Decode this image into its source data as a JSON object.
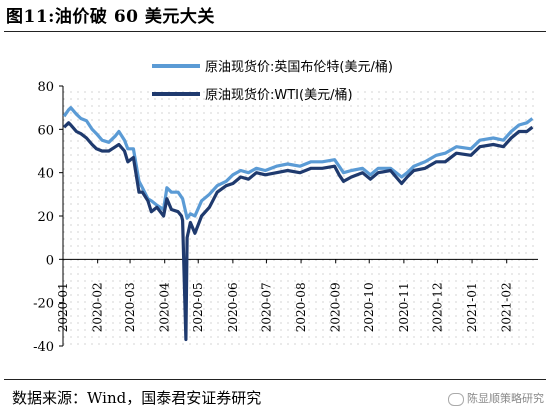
{
  "title": "图11:油价破 60 美元大关",
  "source": "数据来源：Wind，国泰君安证券研究",
  "watermark": "陈显顺策略研究",
  "chart_data": {
    "type": "line",
    "yticks": [
      "80",
      "60",
      "40",
      "20",
      "0",
      "-20",
      "-40"
    ],
    "ylim": [
      -40,
      80
    ],
    "grid": "dotted",
    "legend_position": "top-center",
    "x_categories": [
      "2020-01",
      "2020-02",
      "2020-03",
      "2020-04",
      "2020-05",
      "2020-06",
      "2020-07",
      "2020-08",
      "2020-09",
      "2020-10",
      "2020-11",
      "2020-12",
      "2021-01",
      "2021-02"
    ],
    "series": [
      {
        "name": "原油现货价:英国布伦特(美元/桶)",
        "color": "#5b9bd5",
        "points": [
          [
            "2020-01-02",
            66
          ],
          [
            "2020-01-06",
            69
          ],
          [
            "2020-01-08",
            70
          ],
          [
            "2020-01-13",
            67
          ],
          [
            "2020-01-17",
            65
          ],
          [
            "2020-01-22",
            64
          ],
          [
            "2020-01-27",
            60
          ],
          [
            "2020-01-31",
            58
          ],
          [
            "2020-02-05",
            55
          ],
          [
            "2020-02-11",
            54
          ],
          [
            "2020-02-17",
            57
          ],
          [
            "2020-02-20",
            59
          ],
          [
            "2020-02-25",
            55
          ],
          [
            "2020-02-28",
            51
          ],
          [
            "2020-03-04",
            51
          ],
          [
            "2020-03-09",
            36
          ],
          [
            "2020-03-12",
            33
          ],
          [
            "2020-03-17",
            28
          ],
          [
            "2020-03-20",
            27
          ],
          [
            "2020-03-25",
            25
          ],
          [
            "2020-03-31",
            23
          ],
          [
            "2020-04-03",
            33
          ],
          [
            "2020-04-07",
            31
          ],
          [
            "2020-04-13",
            31
          ],
          [
            "2020-04-17",
            28
          ],
          [
            "2020-04-21",
            19
          ],
          [
            "2020-04-24",
            21
          ],
          [
            "2020-04-28",
            20
          ],
          [
            "2020-05-04",
            27
          ],
          [
            "2020-05-11",
            30
          ],
          [
            "2020-05-18",
            34
          ],
          [
            "2020-05-26",
            36
          ],
          [
            "2020-06-01",
            39
          ],
          [
            "2020-06-08",
            41
          ],
          [
            "2020-06-15",
            40
          ],
          [
            "2020-06-22",
            42
          ],
          [
            "2020-06-30",
            41
          ],
          [
            "2020-07-10",
            43
          ],
          [
            "2020-07-20",
            44
          ],
          [
            "2020-07-31",
            43
          ],
          [
            "2020-08-10",
            45
          ],
          [
            "2020-08-20",
            45
          ],
          [
            "2020-08-31",
            46
          ],
          [
            "2020-09-04",
            43
          ],
          [
            "2020-09-08",
            40
          ],
          [
            "2020-09-15",
            41
          ],
          [
            "2020-09-25",
            42
          ],
          [
            "2020-10-02",
            39
          ],
          [
            "2020-10-09",
            42
          ],
          [
            "2020-10-20",
            42
          ],
          [
            "2020-10-30",
            38
          ],
          [
            "2020-11-04",
            40
          ],
          [
            "2020-11-10",
            43
          ],
          [
            "2020-11-20",
            45
          ],
          [
            "2020-11-30",
            48
          ],
          [
            "2020-12-08",
            49
          ],
          [
            "2020-12-18",
            52
          ],
          [
            "2020-12-31",
            51
          ],
          [
            "2021-01-08",
            55
          ],
          [
            "2021-01-20",
            56
          ],
          [
            "2021-01-29",
            55
          ],
          [
            "2021-02-05",
            59
          ],
          [
            "2021-02-12",
            62
          ],
          [
            "2021-02-19",
            63
          ],
          [
            "2021-02-24",
            65
          ]
        ]
      },
      {
        "name": "原油现货价:WTI(美元/桶)",
        "color": "#1f3a6e",
        "points": [
          [
            "2020-01-02",
            61
          ],
          [
            "2020-01-06",
            63
          ],
          [
            "2020-01-08",
            62
          ],
          [
            "2020-01-13",
            59
          ],
          [
            "2020-01-17",
            58
          ],
          [
            "2020-01-22",
            56
          ],
          [
            "2020-01-27",
            53
          ],
          [
            "2020-01-31",
            51
          ],
          [
            "2020-02-05",
            50
          ],
          [
            "2020-02-11",
            50
          ],
          [
            "2020-02-17",
            52
          ],
          [
            "2020-02-20",
            53
          ],
          [
            "2020-02-25",
            50
          ],
          [
            "2020-02-28",
            45
          ],
          [
            "2020-03-04",
            47
          ],
          [
            "2020-03-09",
            31
          ],
          [
            "2020-03-12",
            31
          ],
          [
            "2020-03-17",
            27
          ],
          [
            "2020-03-20",
            22
          ],
          [
            "2020-03-25",
            24
          ],
          [
            "2020-03-31",
            20
          ],
          [
            "2020-04-03",
            28
          ],
          [
            "2020-04-07",
            23
          ],
          [
            "2020-04-13",
            22
          ],
          [
            "2020-04-16",
            20
          ],
          [
            "2020-04-17",
            18
          ],
          [
            "2020-04-20",
            -37
          ],
          [
            "2020-04-21",
            10
          ],
          [
            "2020-04-24",
            17
          ],
          [
            "2020-04-28",
            12
          ],
          [
            "2020-05-04",
            20
          ],
          [
            "2020-05-11",
            24
          ],
          [
            "2020-05-18",
            31
          ],
          [
            "2020-05-26",
            34
          ],
          [
            "2020-06-01",
            35
          ],
          [
            "2020-06-08",
            38
          ],
          [
            "2020-06-15",
            37
          ],
          [
            "2020-06-22",
            40
          ],
          [
            "2020-06-30",
            39
          ],
          [
            "2020-07-10",
            40
          ],
          [
            "2020-07-20",
            41
          ],
          [
            "2020-07-31",
            40
          ],
          [
            "2020-08-10",
            42
          ],
          [
            "2020-08-20",
            42
          ],
          [
            "2020-08-31",
            43
          ],
          [
            "2020-09-04",
            39
          ],
          [
            "2020-09-08",
            36
          ],
          [
            "2020-09-15",
            38
          ],
          [
            "2020-09-25",
            40
          ],
          [
            "2020-10-02",
            37
          ],
          [
            "2020-10-09",
            40
          ],
          [
            "2020-10-20",
            41
          ],
          [
            "2020-10-30",
            35
          ],
          [
            "2020-11-04",
            38
          ],
          [
            "2020-11-10",
            41
          ],
          [
            "2020-11-20",
            42
          ],
          [
            "2020-11-30",
            45
          ],
          [
            "2020-12-08",
            45
          ],
          [
            "2020-12-18",
            49
          ],
          [
            "2020-12-31",
            48
          ],
          [
            "2021-01-08",
            52
          ],
          [
            "2021-01-20",
            53
          ],
          [
            "2021-01-29",
            52
          ],
          [
            "2021-02-05",
            56
          ],
          [
            "2021-02-12",
            59
          ],
          [
            "2021-02-19",
            59
          ],
          [
            "2021-02-24",
            61
          ]
        ]
      }
    ]
  }
}
